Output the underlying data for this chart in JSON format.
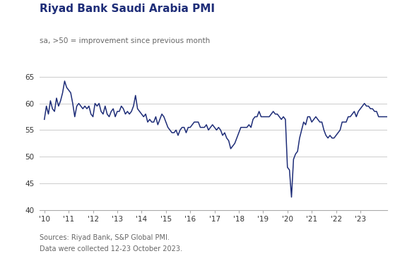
{
  "title": "Riyad Bank Saudi Arabia PMI",
  "subtitle": "sa, >50 = improvement since previous month",
  "footnote1": "Sources: Riyad Bank, S&P Global PMI.",
  "footnote2": "Data were collected 12-23 October 2023.",
  "line_color": "#1e2d78",
  "background_color": "#ffffff",
  "ylim": [
    40,
    65
  ],
  "yticks": [
    40,
    45,
    50,
    55,
    60,
    65
  ],
  "grid_color": "#cccccc",
  "title_color": "#1e2d78",
  "subtitle_color": "#666666",
  "footnote_color": "#666666",
  "xtick_labels": [
    "'10",
    "'11",
    "'12",
    "'13",
    "'14",
    "'15",
    "'16",
    "'17",
    "'18",
    "'19",
    "'20",
    "'21",
    "'22",
    "'23"
  ],
  "pmi_values": [
    57.0,
    59.5,
    58.0,
    60.5,
    59.0,
    58.5,
    61.0,
    59.5,
    60.5,
    62.0,
    64.2,
    63.0,
    62.5,
    62.0,
    60.0,
    57.5,
    59.5,
    60.0,
    59.5,
    59.0,
    59.5,
    59.0,
    59.5,
    58.0,
    57.5,
    60.0,
    59.5,
    60.0,
    58.5,
    58.0,
    59.5,
    58.0,
    57.5,
    58.5,
    59.0,
    57.5,
    58.5,
    58.5,
    59.5,
    59.0,
    58.0,
    58.5,
    58.0,
    58.5,
    59.5,
    61.5,
    59.0,
    58.5,
    58.0,
    57.5,
    58.0,
    56.5,
    57.0,
    56.5,
    56.5,
    57.5,
    56.0,
    57.0,
    58.0,
    57.5,
    56.5,
    55.5,
    55.0,
    54.5,
    54.5,
    55.0,
    54.0,
    55.0,
    55.5,
    55.5,
    54.5,
    55.5,
    55.5,
    56.0,
    56.5,
    56.5,
    56.5,
    55.5,
    55.5,
    55.5,
    56.0,
    55.0,
    55.5,
    56.0,
    55.5,
    55.0,
    55.5,
    55.0,
    54.0,
    54.5,
    53.5,
    53.0,
    51.5,
    52.0,
    52.5,
    53.5,
    54.5,
    55.5,
    55.5,
    55.5,
    55.5,
    56.0,
    55.5,
    57.0,
    57.5,
    57.5,
    58.5,
    57.5,
    57.5,
    57.5,
    57.5,
    57.5,
    58.0,
    58.5,
    58.0,
    58.0,
    57.5,
    57.0,
    57.5,
    57.0,
    48.0,
    47.5,
    42.4,
    49.5,
    50.5,
    51.0,
    53.5,
    55.0,
    56.5,
    56.0,
    57.5,
    57.5,
    56.5,
    57.0,
    57.5,
    57.0,
    56.5,
    56.5,
    55.0,
    54.0,
    53.5,
    54.0,
    53.5,
    53.5,
    54.0,
    54.5,
    55.0,
    56.5,
    56.5,
    56.5,
    57.5,
    57.5,
    58.0,
    58.5,
    57.5,
    58.5,
    59.0,
    59.5,
    60.0,
    59.5,
    59.5,
    59.0,
    59.0,
    58.5,
    58.5,
    57.5,
    57.5,
    57.5,
    57.5,
    57.5,
    57.5,
    58.5,
    58.0,
    57.5,
    57.5,
    57.5,
    57.5,
    58.4
  ]
}
